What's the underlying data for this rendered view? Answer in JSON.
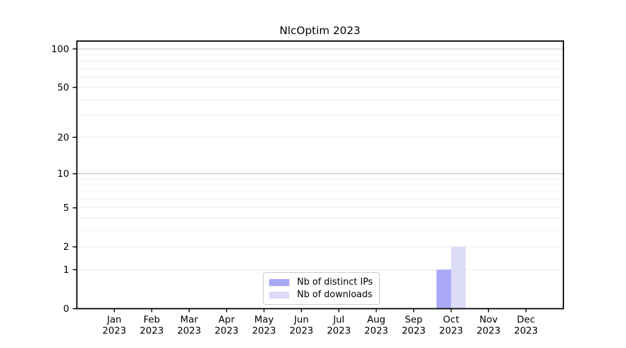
{
  "chart_data": {
    "type": "bar",
    "title": "NlcOptim 2023",
    "categories": [
      "Jan",
      "Feb",
      "Mar",
      "Apr",
      "May",
      "Jun",
      "Jul",
      "Aug",
      "Sep",
      "Oct",
      "Nov",
      "Dec"
    ],
    "category_year": "2023",
    "series": [
      {
        "name": "Nb of distinct IPs",
        "color": "#a9a9f7",
        "values": [
          0,
          0,
          0,
          0,
          0,
          0,
          0,
          0,
          0,
          1,
          0,
          0
        ]
      },
      {
        "name": "Nb of downloads",
        "color": "#dcdcf8",
        "values": [
          0,
          0,
          0,
          0,
          0,
          0,
          0,
          0,
          0,
          2,
          0,
          0
        ]
      }
    ],
    "y_scale": "log1p",
    "y_ticks": [
      0,
      1,
      2,
      5,
      10,
      20,
      50,
      100
    ],
    "ylim": [
      0,
      115
    ],
    "grid": {
      "minor": [
        1,
        2,
        3,
        4,
        5,
        6,
        7,
        8,
        9,
        20,
        30,
        40,
        50,
        60,
        70,
        80,
        90
      ],
      "major": [
        10,
        100
      ]
    },
    "legend_position": "lower center inside",
    "colors": {
      "background": "#ffffff",
      "axis": "#000000",
      "grid_minor": "#ededed",
      "grid_major": "#c3c3c3"
    }
  }
}
